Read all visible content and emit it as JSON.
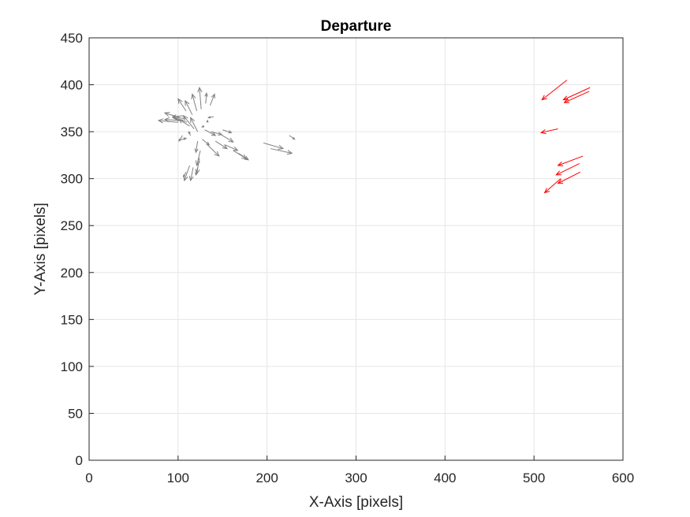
{
  "chart_data": {
    "type": "quiver",
    "title": "Departure",
    "xlabel": "X-Axis [pixels]",
    "ylabel": "Y-Axis [pixels]",
    "xlim": [
      0,
      600
    ],
    "ylim": [
      0,
      450
    ],
    "xticks": [
      0,
      100,
      200,
      300,
      400,
      500,
      600
    ],
    "yticks": [
      0,
      50,
      100,
      150,
      200,
      250,
      300,
      350,
      400,
      450
    ],
    "grid": true,
    "colors": {
      "gray": "#808080",
      "red": "#ff0000",
      "grid": "#e6e6e6",
      "axis": "#262626"
    },
    "series": [
      {
        "color": "gray",
        "arrows": [
          [
            122,
            350,
            -8,
            15
          ],
          [
            118,
            353,
            -12,
            14
          ],
          [
            113,
            356,
            -12,
            7
          ],
          [
            110,
            360,
            -13,
            4
          ],
          [
            108,
            364,
            -14,
            1
          ],
          [
            106,
            367,
            -12,
            -1
          ],
          [
            103,
            362,
            -18,
            1
          ],
          [
            100,
            360,
            -22,
            2
          ],
          [
            102,
            365,
            -17,
            5
          ],
          [
            109,
            372,
            -9,
            13
          ],
          [
            116,
            368,
            -8,
            15
          ],
          [
            121,
            372,
            -5,
            18
          ],
          [
            126,
            374,
            -2,
            23
          ],
          [
            131,
            380,
            1,
            11
          ],
          [
            136,
            378,
            5,
            12
          ],
          [
            140,
            366,
            -6,
            -1
          ],
          [
            133,
            360,
            0,
            2
          ],
          [
            129,
            356,
            -2,
            -1
          ],
          [
            130,
            352,
            12,
            -6
          ],
          [
            137,
            350,
            12,
            -3
          ],
          [
            150,
            352,
            10,
            -3
          ],
          [
            148,
            347,
            14,
            -8
          ],
          [
            142,
            340,
            13,
            -8
          ],
          [
            153,
            336,
            14,
            -6
          ],
          [
            162,
            330,
            15,
            -9
          ],
          [
            168,
            327,
            11,
            -7
          ],
          [
            132,
            337,
            14,
            -13
          ],
          [
            127,
            342,
            8,
            -6
          ],
          [
            122,
            340,
            -2,
            -12
          ],
          [
            125,
            330,
            -4,
            -16
          ],
          [
            124,
            322,
            -3,
            -17
          ],
          [
            122,
            312,
            -2,
            -8
          ],
          [
            117,
            312,
            -3,
            -14
          ],
          [
            113,
            314,
            -6,
            -16
          ],
          [
            109,
            307,
            -3,
            -5
          ],
          [
            105,
            346,
            -4,
            -6
          ],
          [
            101,
            341,
            8,
            2
          ],
          [
            114,
            346,
            -2,
            4
          ],
          [
            196,
            338,
            22,
            -6
          ],
          [
            204,
            332,
            24,
            -5
          ],
          [
            225,
            346,
            6,
            -4
          ]
        ]
      },
      {
        "color": "red",
        "arrows": [
          [
            537,
            405,
            -28,
            -21
          ],
          [
            563,
            397,
            -30,
            -13
          ],
          [
            562,
            393,
            -28,
            -12
          ],
          [
            527,
            353,
            -19,
            -4
          ],
          [
            555,
            324,
            -28,
            -10
          ],
          [
            551,
            316,
            -26,
            -12
          ],
          [
            552,
            307,
            -25,
            -12
          ],
          [
            530,
            300,
            -18,
            -15
          ]
        ]
      }
    ]
  }
}
